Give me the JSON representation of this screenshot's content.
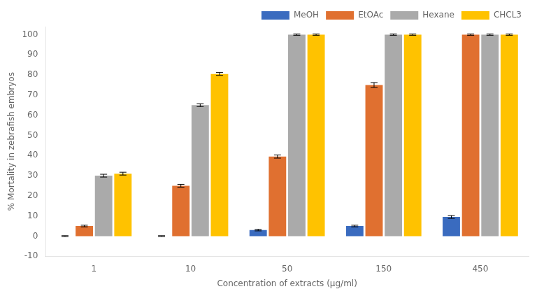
{
  "chart_data": {
    "type": "bar",
    "categories": [
      "1",
      "10",
      "50",
      "150",
      "450"
    ],
    "series": [
      {
        "name": "MeOH",
        "color": "#3a6bbf",
        "values": [
          0,
          0,
          3,
          5,
          9.5
        ],
        "errors": [
          0.2,
          0.2,
          0.4,
          0.4,
          0.7
        ]
      },
      {
        "name": "EtOAc",
        "color": "#e07030",
        "values": [
          5,
          25,
          39.5,
          75,
          100
        ],
        "errors": [
          0.4,
          0.7,
          0.8,
          1.2,
          0.3
        ]
      },
      {
        "name": "Hexane",
        "color": "#aaaaaa",
        "values": [
          30,
          65,
          100,
          100,
          100
        ],
        "errors": [
          0.7,
          0.7,
          0.3,
          0.3,
          0.3
        ]
      },
      {
        "name": "CHCL3",
        "color": "#ffc200",
        "values": [
          31,
          80.5,
          100,
          100,
          100
        ],
        "errors": [
          0.7,
          0.7,
          0.3,
          0.3,
          0.3
        ]
      }
    ],
    "xlabel": "Concentration of extracts (μg/ml)",
    "ylabel": "% Mortality in zebrafish embryos",
    "ylim": [
      -10,
      104
    ],
    "yticks": [
      -10,
      0,
      10,
      20,
      30,
      40,
      50,
      60,
      70,
      80,
      90,
      100
    ],
    "grid": false,
    "legend": "upper right"
  }
}
